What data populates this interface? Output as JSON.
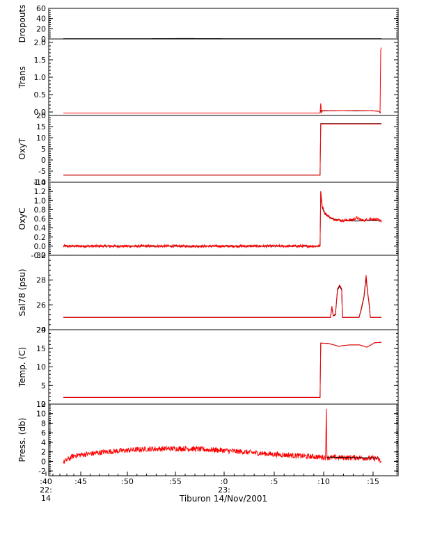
{
  "chart_data": {
    "type": "line",
    "xlabel": "Tiburon 14/Nov/2001",
    "x_ticks": [
      ":40",
      ":45",
      ":50",
      ":55",
      ":0",
      ":5",
      ":10",
      ":15"
    ],
    "x_tick_sub": [
      {
        "at": ":40",
        "line2": "22:",
        "line3": "14"
      },
      {
        "at": ":0",
        "line2": "23:",
        "line3": ""
      }
    ],
    "colors": {
      "primary": "#000000",
      "secondary": "#ff0000"
    },
    "panels": [
      {
        "ylabel": "Dropouts",
        "ylim": [
          0,
          60
        ],
        "yticks": [
          "60",
          "40",
          "20",
          "0"
        ],
        "series": [
          {
            "color": "#000000",
            "points": [
              [
                0,
                0.5
              ],
              [
                100,
                0.5
              ],
              [
                173,
                0.8
              ],
              [
                260,
                0.5
              ],
              [
                456,
                0.5
              ]
            ]
          }
        ]
      },
      {
        "ylabel": "Trans",
        "ylim": [
          -0.1,
          2.1
        ],
        "yticks": [
          "2.0",
          "1.5",
          "1.0",
          "0.5",
          "0.0"
        ],
        "series": [
          {
            "color": "#000000",
            "points": [
              [
                0,
                -0.03
              ],
              [
                368,
                -0.03
              ],
              [
                369,
                0.05
              ],
              [
                372,
                0.03
              ],
              [
                400,
                0.04
              ],
              [
                420,
                0.03
              ],
              [
                440,
                0.04
              ],
              [
                452,
                0.02
              ],
              [
                455,
                -0.02
              ]
            ]
          },
          {
            "color": "#ff0000",
            "points": [
              [
                0,
                -0.03
              ],
              [
                368,
                -0.03
              ],
              [
                369,
                0.25
              ],
              [
                370,
                -0.02
              ],
              [
                372,
                0.04
              ],
              [
                400,
                0.04
              ],
              [
                420,
                0.04
              ],
              [
                440,
                0.04
              ],
              [
                452,
                0.02
              ],
              [
                454,
                -0.02
              ],
              [
                455,
                1.8
              ],
              [
                456,
                1.85
              ]
            ]
          }
        ]
      },
      {
        "ylabel": "OxyT",
        "ylim": [
          -10,
          20
        ],
        "yticks": [
          "20",
          "15",
          "10",
          "5",
          "0",
          "-5",
          "-10"
        ],
        "series": [
          {
            "color": "#000000",
            "points": [
              [
                0,
                -6.8
              ],
              [
                368,
                -6.8
              ],
              [
                369,
                16.3
              ],
              [
                456,
                16.3
              ]
            ]
          },
          {
            "color": "#ff0000",
            "points": [
              [
                0,
                -6.8
              ],
              [
                368,
                -6.8
              ],
              [
                369,
                16.2
              ],
              [
                456,
                16.2
              ]
            ]
          }
        ]
      },
      {
        "ylabel": "OxyC",
        "ylim": [
          -0.2,
          1.4
        ],
        "yticks": [
          "1.4",
          "1.2",
          "1.0",
          "0.8",
          "0.6",
          "0.4",
          "0.2",
          "0.0",
          "-0.2"
        ],
        "series": [
          {
            "color": "#000000",
            "points": [
              [
                0,
                0.0
              ],
              [
                368,
                0.0
              ],
              [
                369,
                1.2
              ],
              [
                371,
                0.85
              ],
              [
                375,
                0.7
              ],
              [
                385,
                0.6
              ],
              [
                400,
                0.56
              ],
              [
                420,
                0.55
              ],
              [
                440,
                0.56
              ],
              [
                456,
                0.55
              ]
            ]
          },
          {
            "color": "#ff0000",
            "noise": 0.03,
            "points": [
              [
                0,
                0.0
              ],
              [
                368,
                0.0
              ],
              [
                369,
                1.22
              ],
              [
                371,
                0.9
              ],
              [
                375,
                0.72
              ],
              [
                385,
                0.6
              ],
              [
                400,
                0.56
              ],
              [
                415,
                0.58
              ],
              [
                420,
                0.62
              ],
              [
                430,
                0.56
              ],
              [
                440,
                0.6
              ],
              [
                456,
                0.56
              ]
            ]
          }
        ]
      },
      {
        "ylabel": "Sal78 (psu)",
        "ylim": [
          24,
          30
        ],
        "yticks": [
          "30",
          "28",
          "26",
          "24"
        ],
        "series": [
          {
            "color": "#000000",
            "points": [
              [
                0,
                25.0
              ],
              [
                383,
                25.0
              ],
              [
                385,
                25.8
              ],
              [
                387,
                25.1
              ],
              [
                390,
                25.2
              ],
              [
                393,
                27.2
              ],
              [
                396,
                27.5
              ],
              [
                399,
                27.2
              ],
              [
                400,
                25.0
              ],
              [
                424,
                25.0
              ],
              [
                427,
                25.6
              ],
              [
                431,
                26.6
              ],
              [
                434,
                28.2
              ],
              [
                436,
                27.0
              ],
              [
                438,
                26.2
              ],
              [
                440,
                25.0
              ],
              [
                456,
                25.0
              ]
            ]
          },
          {
            "color": "#ff0000",
            "points": [
              [
                0,
                25.0
              ],
              [
                383,
                25.0
              ],
              [
                385,
                25.9
              ],
              [
                387,
                25.1
              ],
              [
                390,
                25.3
              ],
              [
                393,
                27.3
              ],
              [
                396,
                27.6
              ],
              [
                399,
                27.3
              ],
              [
                400,
                25.0
              ],
              [
                424,
                25.0
              ],
              [
                427,
                25.7
              ],
              [
                431,
                26.7
              ],
              [
                434,
                28.4
              ],
              [
                436,
                27.1
              ],
              [
                438,
                26.3
              ],
              [
                440,
                25.0
              ],
              [
                456,
                25.0
              ]
            ]
          }
        ]
      },
      {
        "ylabel": "Temp. (C)",
        "ylim": [
          0,
          20
        ],
        "yticks": [
          "20",
          "15",
          "10",
          "5",
          "0"
        ],
        "series": [
          {
            "color": "#000000",
            "points": [
              [
                0,
                1.8
              ],
              [
                368,
                1.8
              ],
              [
                369,
                16.4
              ],
              [
                380,
                16.3
              ],
              [
                390,
                15.8
              ],
              [
                395,
                15.5
              ],
              [
                400,
                15.7
              ],
              [
                410,
                15.9
              ],
              [
                425,
                15.9
              ],
              [
                435,
                15.3
              ],
              [
                440,
                15.8
              ],
              [
                446,
                16.5
              ],
              [
                456,
                16.6
              ]
            ]
          },
          {
            "color": "#ff0000",
            "points": [
              [
                0,
                1.8
              ],
              [
                368,
                1.8
              ],
              [
                369,
                16.4
              ],
              [
                380,
                16.3
              ],
              [
                390,
                15.8
              ],
              [
                395,
                15.5
              ],
              [
                400,
                15.7
              ],
              [
                410,
                15.9
              ],
              [
                425,
                15.9
              ],
              [
                435,
                15.3
              ],
              [
                440,
                15.8
              ],
              [
                446,
                16.5
              ],
              [
                456,
                16.6
              ]
            ]
          }
        ]
      },
      {
        "ylabel": "Press. (db)",
        "ylim": [
          -3,
          12
        ],
        "yticks": [
          "12",
          "10",
          "8",
          "6",
          "4",
          "2",
          "0",
          "-2"
        ],
        "series": [
          {
            "color": "#ff0000",
            "noise": 0.55,
            "points": [
              [
                0,
                -0.2
              ],
              [
                15,
                1.2
              ],
              [
                60,
                2.0
              ],
              [
                120,
                2.6
              ],
              [
                175,
                2.7
              ],
              [
                230,
                2.3
              ],
              [
                300,
                1.5
              ],
              [
                370,
                0.9
              ],
              [
                376,
                0.9
              ],
              [
                377,
                11.0
              ],
              [
                378,
                0.8
              ],
              [
                420,
                0.8
              ],
              [
                450,
                0.6
              ],
              [
                456,
                -0.2
              ]
            ]
          },
          {
            "color": "#000000",
            "points": [
              [
                377,
                0.9
              ],
              [
                420,
                0.8
              ],
              [
                452,
                0.7
              ]
            ]
          }
        ]
      }
    ]
  }
}
